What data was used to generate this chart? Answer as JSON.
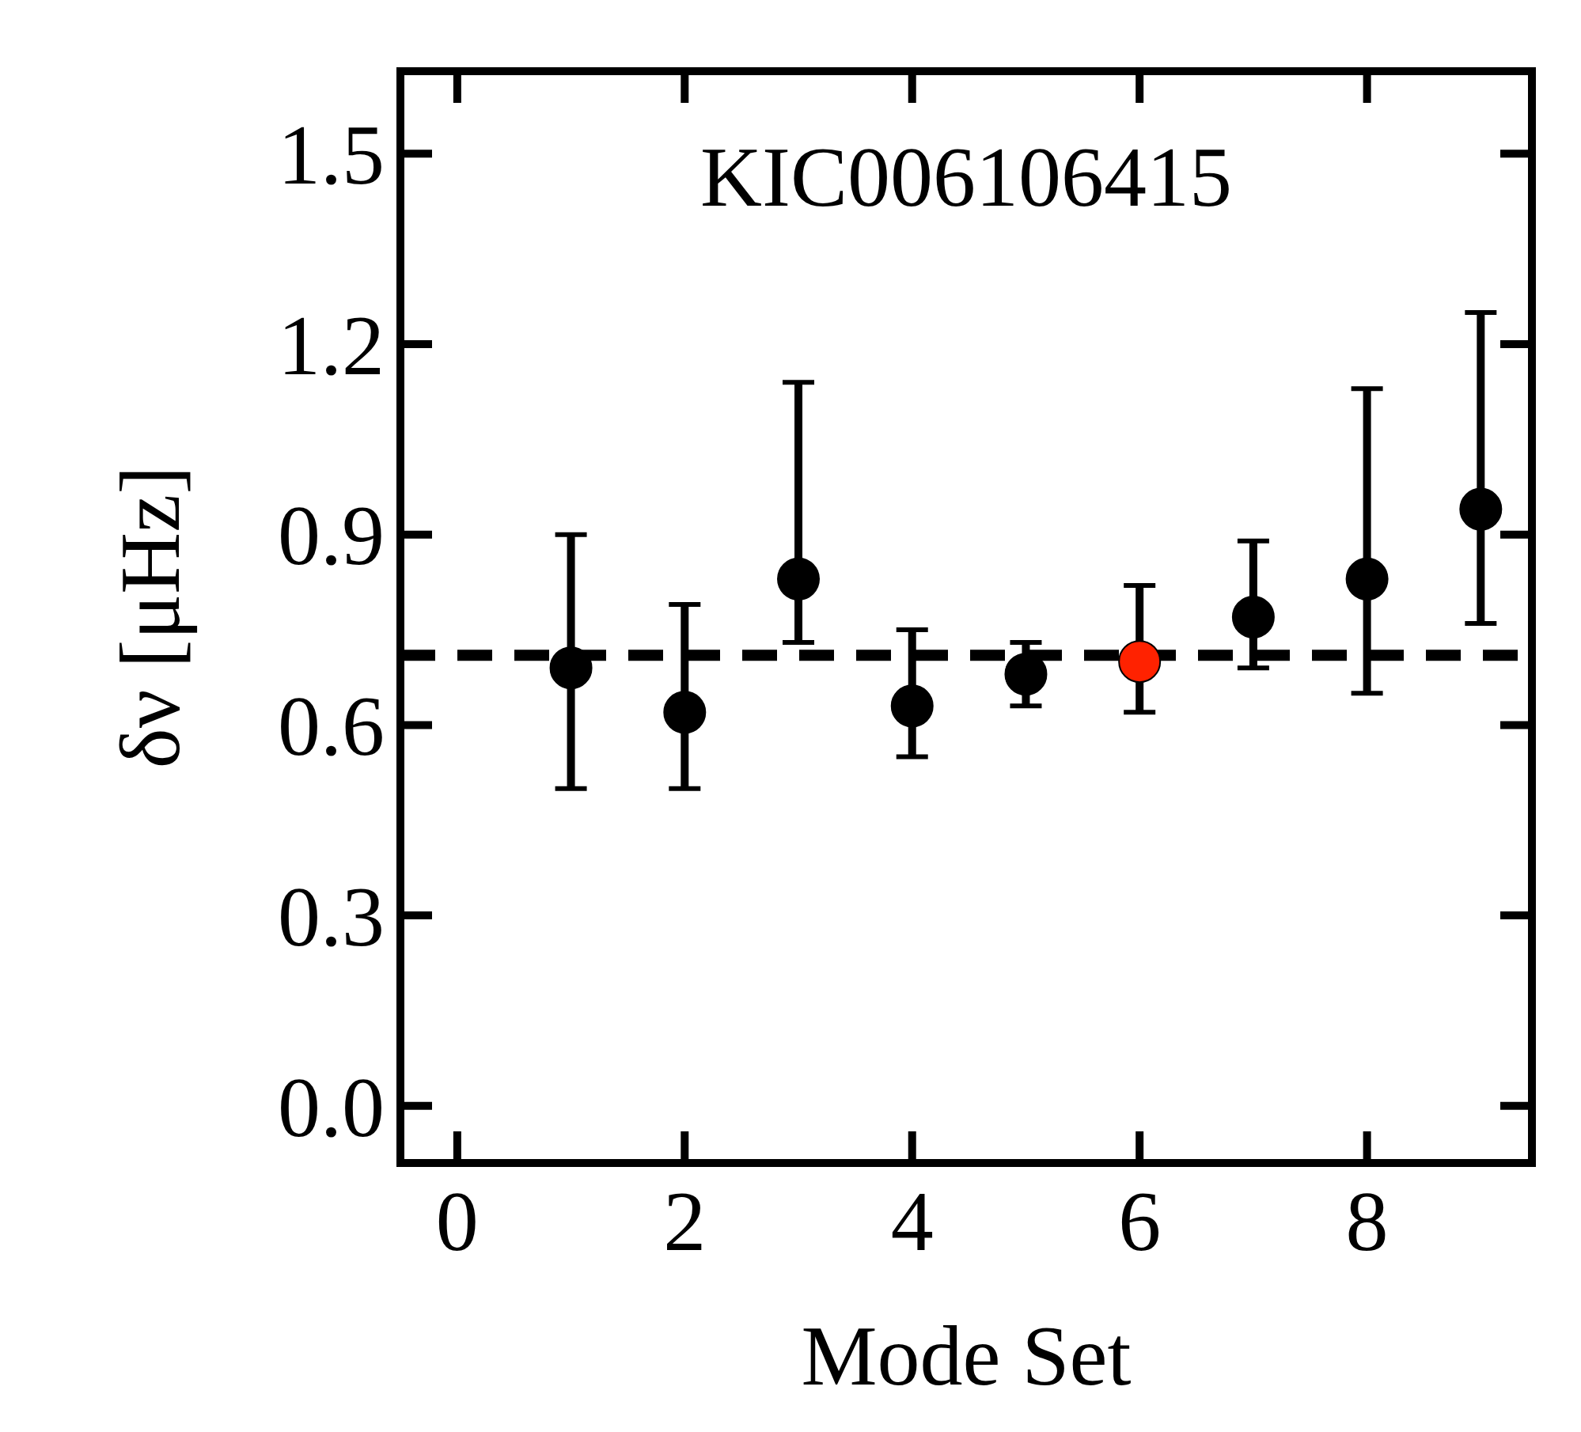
{
  "chart_data": {
    "type": "scatter",
    "title": "KIC006106415",
    "xlabel": "Mode Set",
    "ylabel": "δν [μHz]",
    "xlim": [
      -0.5,
      9.45
    ],
    "xticks": [
      0,
      2,
      4,
      6,
      8
    ],
    "ylim": [
      -0.09,
      1.63
    ],
    "yticks": [
      {
        "value": 0,
        "label": "0.0"
      },
      0.3,
      0.6,
      0.9,
      1.2,
      1.5
    ],
    "marker": "circle",
    "ref_lines": [
      {
        "axis": "y",
        "value": 0.71,
        "line_style": "dashed",
        "color": "#000000"
      }
    ],
    "series": [
      {
        "color": "#000000",
        "x": [
          1,
          2,
          3,
          4,
          5,
          7,
          8,
          9
        ],
        "values": [
          0.69,
          0.62,
          0.83,
          0.63,
          0.68,
          0.77,
          0.83,
          0.94
        ],
        "errors": [
          [
            0.5,
            0.9
          ],
          [
            0.5,
            0.79
          ],
          [
            0.73,
            1.14
          ],
          [
            0.55,
            0.75
          ],
          [
            0.63,
            0.73
          ],
          [
            0.69,
            0.89
          ],
          [
            0.65,
            1.13
          ],
          [
            0.76,
            1.25
          ]
        ]
      },
      {
        "color": "#ff2200",
        "x": [
          6
        ],
        "values": [
          0.7
        ],
        "errors": [
          [
            0.62,
            0.82
          ]
        ]
      }
    ]
  }
}
